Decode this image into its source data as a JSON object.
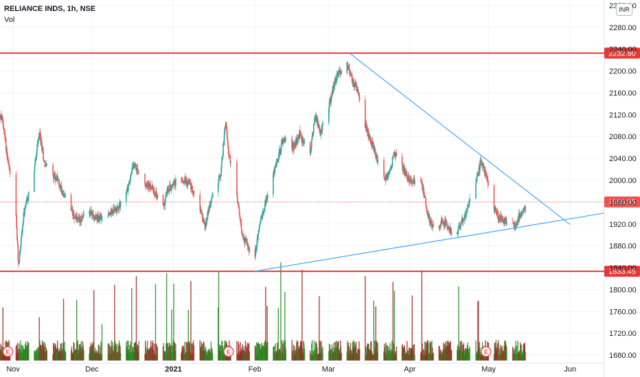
{
  "legend": {
    "symbol": "RELIANCE INDS, 1h, NSE",
    "volume_label": "Vol"
  },
  "currency_button": "INR",
  "colors": {
    "up": "#26a69a",
    "down": "#ef5350",
    "vol_up": "#1e8a1e",
    "vol_down": "#a01e1e",
    "level": "#e53935",
    "trend": "#42a5f5",
    "price_line": "#ef5350",
    "earnings": "#ef5350"
  },
  "chart_data": {
    "type": "candlestick",
    "title": "RELIANCE INDS, 1h, NSE",
    "xlabel": "",
    "ylabel": "",
    "x_ticks": [
      "Nov",
      "Dec",
      "2021",
      "Feb",
      "Mar",
      "Apr",
      "May",
      "Jun"
    ],
    "y_ticks": [
      1680.0,
      1720.0,
      1760.0,
      1800.0,
      1840.0,
      1880.0,
      1920.0,
      1960.0,
      2000.0,
      2040.0,
      2080.0,
      2120.0,
      2160.0,
      2200.0,
      2240.0,
      2280.0,
      2320.0
    ],
    "ylim": [
      1665,
      2330
    ],
    "x_range": [
      "2020-10-27",
      "2021-06-14"
    ],
    "horizontal_levels": [
      {
        "value": 2232.8,
        "label": "2232.80"
      },
      {
        "value": 1833.45,
        "label": "1833.45"
      }
    ],
    "last_price": {
      "value": 1960.35,
      "label": "1960.35"
    },
    "trendlines": [
      {
        "from": [
          "2021-03-09",
          2232.8
        ],
        "to": [
          "2021-06-01",
          1919
        ]
      },
      {
        "from": [
          "2021-02-01",
          1833.45
        ],
        "to": [
          "2021-06-14",
          1940
        ]
      }
    ],
    "earnings_markers": [
      {
        "date": "2020-10-30",
        "label": "E"
      },
      {
        "date": "2021-01-22",
        "label": "E"
      },
      {
        "date": "2021-04-30",
        "label": "E"
      }
    ],
    "price_path": [
      [
        "2020-10-26",
        2120
      ],
      [
        "2020-10-28",
        2110
      ],
      [
        "2020-10-30",
        2035
      ],
      [
        "2020-11-02",
        1940
      ],
      [
        "2020-11-03",
        1845
      ],
      [
        "2020-11-05",
        1935
      ],
      [
        "2020-11-09",
        2020
      ],
      [
        "2020-11-11",
        2085
      ],
      [
        "2020-11-13",
        2030
      ],
      [
        "2020-11-18",
        2000
      ],
      [
        "2020-11-23",
        1945
      ],
      [
        "2020-11-26",
        1925
      ],
      [
        "2020-11-30",
        1945
      ],
      [
        "2020-12-03",
        1930
      ],
      [
        "2020-12-07",
        1940
      ],
      [
        "2020-12-10",
        1945
      ],
      [
        "2020-12-14",
        1975
      ],
      [
        "2020-12-17",
        2030
      ],
      [
        "2020-12-21",
        1995
      ],
      [
        "2020-12-24",
        1985
      ],
      [
        "2020-12-28",
        1950
      ],
      [
        "2020-12-30",
        1985
      ],
      [
        "2021-01-04",
        2005
      ],
      [
        "2021-01-07",
        1995
      ],
      [
        "2021-01-11",
        1950
      ],
      [
        "2021-01-13",
        1915
      ],
      [
        "2021-01-15",
        1960
      ],
      [
        "2021-01-19",
        2010
      ],
      [
        "2021-01-21",
        2115
      ],
      [
        "2021-01-22",
        2050
      ],
      [
        "2021-01-25",
        1975
      ],
      [
        "2021-01-27",
        1905
      ],
      [
        "2021-01-29",
        1880
      ],
      [
        "2021-02-01",
        1860
      ],
      [
        "2021-02-03",
        1925
      ],
      [
        "2021-02-05",
        1960
      ],
      [
        "2021-02-08",
        2010
      ],
      [
        "2021-02-10",
        2045
      ],
      [
        "2021-02-12",
        2080
      ],
      [
        "2021-02-16",
        2060
      ],
      [
        "2021-02-18",
        2085
      ],
      [
        "2021-02-22",
        2050
      ],
      [
        "2021-02-24",
        2120
      ],
      [
        "2021-02-26",
        2085
      ],
      [
        "2021-03-02",
        2150
      ],
      [
        "2021-03-04",
        2190
      ],
      [
        "2021-03-08",
        2215
      ],
      [
        "2021-03-10",
        2185
      ],
      [
        "2021-03-12",
        2165
      ],
      [
        "2021-03-15",
        2100
      ],
      [
        "2021-03-17",
        2075
      ],
      [
        "2021-03-19",
        2045
      ],
      [
        "2021-03-22",
        2000
      ],
      [
        "2021-03-24",
        2010
      ],
      [
        "2021-03-26",
        2050
      ],
      [
        "2021-03-30",
        2015
      ],
      [
        "2021-04-01",
        2000
      ],
      [
        "2021-04-05",
        1995
      ],
      [
        "2021-04-06",
        1985
      ],
      [
        "2021-04-07",
        1960
      ],
      [
        "2021-04-08",
        1935
      ],
      [
        "2021-04-09",
        1920
      ],
      [
        "2021-04-12",
        1915
      ],
      [
        "2021-04-13",
        1925
      ],
      [
        "2021-04-15",
        1920
      ],
      [
        "2021-04-16",
        1910
      ],
      [
        "2021-04-19",
        1900
      ],
      [
        "2021-04-20",
        1915
      ],
      [
        "2021-04-22",
        1935
      ],
      [
        "2021-04-26",
        1990
      ],
      [
        "2021-04-28",
        2035
      ],
      [
        "2021-04-30",
        2010
      ],
      [
        "2021-05-03",
        1950
      ],
      [
        "2021-05-05",
        1930
      ],
      [
        "2021-05-07",
        1925
      ],
      [
        "2021-05-10",
        1920
      ],
      [
        "2021-05-11",
        1915
      ],
      [
        "2021-05-12",
        1930
      ],
      [
        "2021-05-14",
        1945
      ],
      [
        "2021-05-17",
        1960
      ]
    ],
    "volume_note": "Volume histogram shown at bottom of pane"
  }
}
